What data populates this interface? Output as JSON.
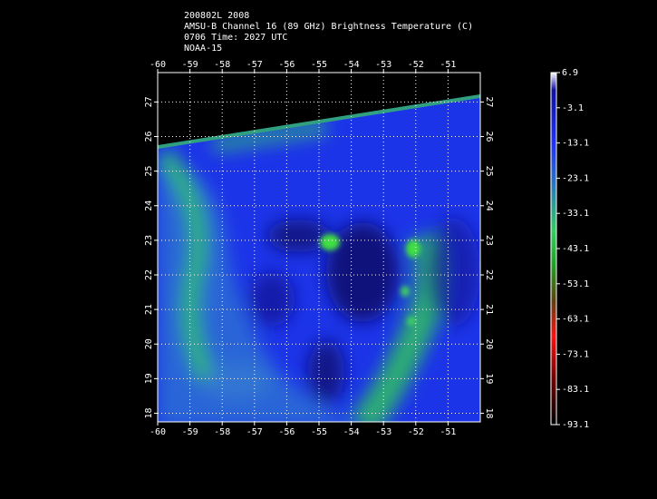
{
  "header": {
    "lines": [
      "200802L 2008",
      "AMSU-B Channel 16 (89 GHz) Brightness Temperature (C)",
      "0706 Time: 2027 UTC",
      "NOAA-15"
    ]
  },
  "map": {
    "xlim": [
      -60,
      -50
    ],
    "ylim": [
      17.75,
      27.85
    ],
    "xticks": [
      -60,
      -59,
      -58,
      -57,
      -56,
      -55,
      -54,
      -53,
      -52,
      -51
    ],
    "yticks": [
      18,
      19,
      20,
      21,
      22,
      23,
      24,
      25,
      26,
      27
    ],
    "grid": true
  },
  "colorbar": {
    "lim": [
      -93.1,
      6.9
    ],
    "ticks": [
      6.9,
      -3.1,
      -13.1,
      -23.1,
      -33.1,
      -43.1,
      -53.1,
      -63.1,
      -73.1,
      -83.1,
      -93.1
    ]
  }
}
